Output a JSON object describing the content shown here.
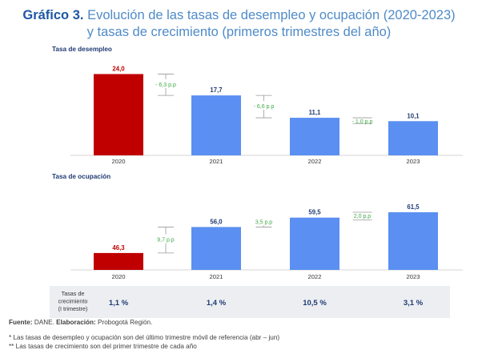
{
  "title": {
    "prefix": "Gráfico 3.",
    "line1": "Evolución de las tasas de desempleo y ocupación (2020-2023)",
    "line2": "y tasas de crecimiento (primeros trimestres del año)"
  },
  "colors": {
    "highlight_bar": "#c00000",
    "bar": "#5b8ff1",
    "change_text": "#3daa46",
    "title_blue": "#4f8bc7",
    "title_bold": "#1f56a3",
    "growth_row_bg": "#eceef2"
  },
  "chart_data": [
    {
      "type": "bar",
      "title": "Tasa de desempleo",
      "categories": [
        "2020",
        "2021",
        "2022",
        "2023"
      ],
      "values": [
        24.0,
        17.7,
        11.1,
        10.1
      ],
      "value_labels": [
        "24,0",
        "17,7",
        "11,1",
        "10,1"
      ],
      "changes": [
        "- 6,3 p.p",
        "- 6,6 p.p",
        "- 1,0 p.p"
      ],
      "ylim": [
        0,
        26
      ],
      "grid": false,
      "legend": "none"
    },
    {
      "type": "bar",
      "title": "Tasa de ocupación",
      "categories": [
        "2020",
        "2021",
        "2022",
        "2023"
      ],
      "values": [
        46.3,
        56.0,
        59.5,
        61.5
      ],
      "value_labels": [
        "46,3",
        "56,0",
        "59,5",
        "61,5"
      ],
      "changes": [
        "9,7 p.p",
        "3,5 p.p",
        "2,0 p.p"
      ],
      "ylim": [
        40,
        63
      ],
      "grid": false,
      "legend": "none"
    }
  ],
  "growth_row": {
    "label_lines": [
      "Tasas de",
      "crecimiento",
      "(I trimestre)"
    ],
    "values": [
      "1,1 %",
      "1,4 %",
      "10,5 %",
      "3,1 %"
    ]
  },
  "footer": {
    "source_label": "Fuente:",
    "source_text": "DANE.",
    "elab_label": "Elaboración:",
    "elab_text": "Probogotá Región.",
    "note1": "* Las tasas de desempleo y ocupación son del último trimestre móvil de referencia (abr – jun)",
    "note2": "** Las tasas de crecimiento son del primer trimestre de cada año"
  }
}
